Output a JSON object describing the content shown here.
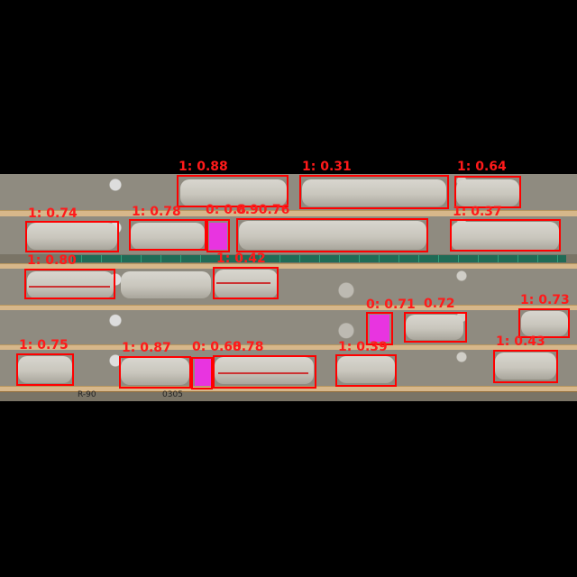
{
  "image": {
    "subject": "drill-core-box",
    "box_color": "#ff0000",
    "label_color": "#ff1a1a"
  },
  "handwritten": {
    "left": "R-90",
    "center": "0305"
  },
  "detections": [
    {
      "label": "1: 0.88"
    },
    {
      "label": "1: 0.31"
    },
    {
      "label": "1: 0.64"
    },
    {
      "label": "1: 0.74"
    },
    {
      "label": "1: 0.78"
    },
    {
      "label": "0: 0.8"
    },
    {
      "label": "0.90.76"
    },
    {
      "label": "1: 0.37"
    },
    {
      "label": "1: 0.80"
    },
    {
      "label": "1: 0.42"
    },
    {
      "label": "0: 0.71"
    },
    {
      "label": "0.72"
    },
    {
      "label": "1: 0.73"
    },
    {
      "label": "1: 0.75"
    },
    {
      "label": "1: 0.87"
    },
    {
      "label": "0: 0.68"
    },
    {
      "label": "0.78"
    },
    {
      "label": "1: 0.39"
    },
    {
      "label": "1: 0.43"
    }
  ]
}
